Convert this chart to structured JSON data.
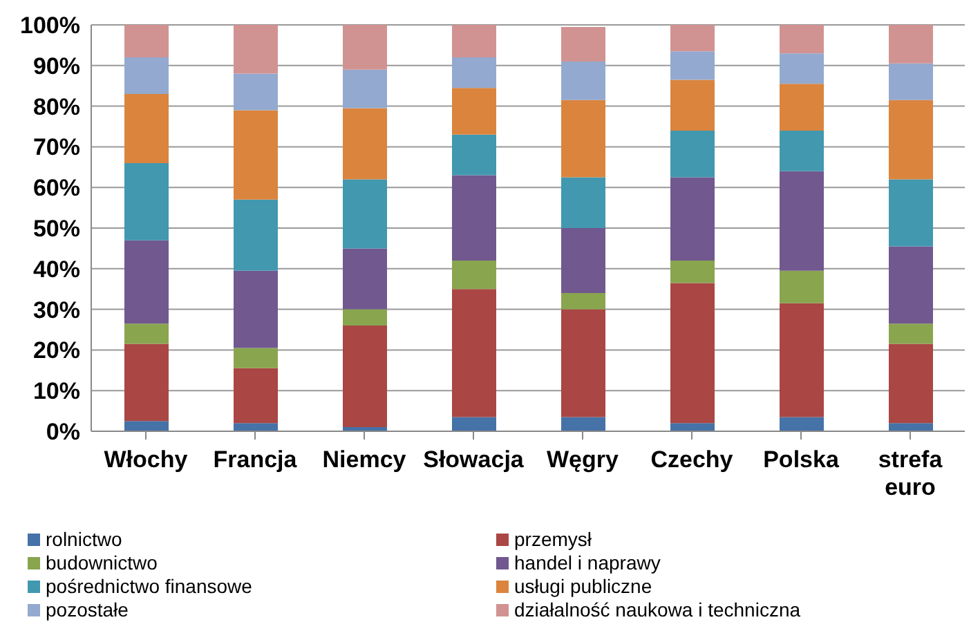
{
  "chart_data": {
    "type": "bar",
    "stacked": true,
    "categories": [
      "Włochy",
      "Francja",
      "Niemcy",
      "Słowacja",
      "Węgry",
      "Czechy",
      "Polska",
      "strefa euro"
    ],
    "series": [
      {
        "name": "rolnictwo",
        "color": "#4572a7",
        "values": [
          2.5,
          2,
          1,
          3.5,
          3.5,
          2,
          3.5,
          2
        ]
      },
      {
        "name": "przemysł",
        "color": "#aa4643",
        "values": [
          19,
          13.5,
          25,
          31.5,
          26.5,
          34.5,
          28,
          19.5
        ]
      },
      {
        "name": "budownictwo",
        "color": "#89a54e",
        "values": [
          5,
          5,
          4,
          7,
          4,
          5.5,
          8,
          5
        ]
      },
      {
        "name": "handel i naprawy",
        "color": "#71588f",
        "values": [
          20.5,
          19,
          15,
          21,
          16,
          20.5,
          24.5,
          19
        ]
      },
      {
        "name": "pośrednictwo finansowe",
        "color": "#4198af",
        "values": [
          19,
          17.5,
          17,
          10,
          12.5,
          11.5,
          10,
          16.5
        ]
      },
      {
        "name": "usługi publiczne",
        "color": "#db843d",
        "values": [
          17,
          22,
          17.5,
          11.5,
          19,
          12.5,
          11.5,
          19.5
        ]
      },
      {
        "name": "pozostałe",
        "color": "#93a9cf",
        "values": [
          9,
          9,
          9.5,
          7.5,
          9.5,
          7,
          7.5,
          9
        ]
      },
      {
        "name": "działalność naukowa i techniczna",
        "color": "#d19392",
        "values": [
          8,
          12,
          11,
          8,
          8.5,
          6.5,
          7,
          9.5
        ]
      }
    ],
    "ylim": [
      0,
      100
    ],
    "yticks": [
      {
        "value": 0,
        "label": "0%"
      },
      {
        "value": 10,
        "label": "10%"
      },
      {
        "value": 20,
        "label": "20%"
      },
      {
        "value": 30,
        "label": "30%"
      },
      {
        "value": 40,
        "label": "40%"
      },
      {
        "value": 50,
        "label": "50%"
      },
      {
        "value": 60,
        "label": "60%"
      },
      {
        "value": 70,
        "label": "70%"
      },
      {
        "value": 80,
        "label": "80%"
      },
      {
        "value": 90,
        "label": "90%"
      },
      {
        "value": 100,
        "label": "100%"
      }
    ],
    "grid": "y",
    "legend": "bottom"
  }
}
